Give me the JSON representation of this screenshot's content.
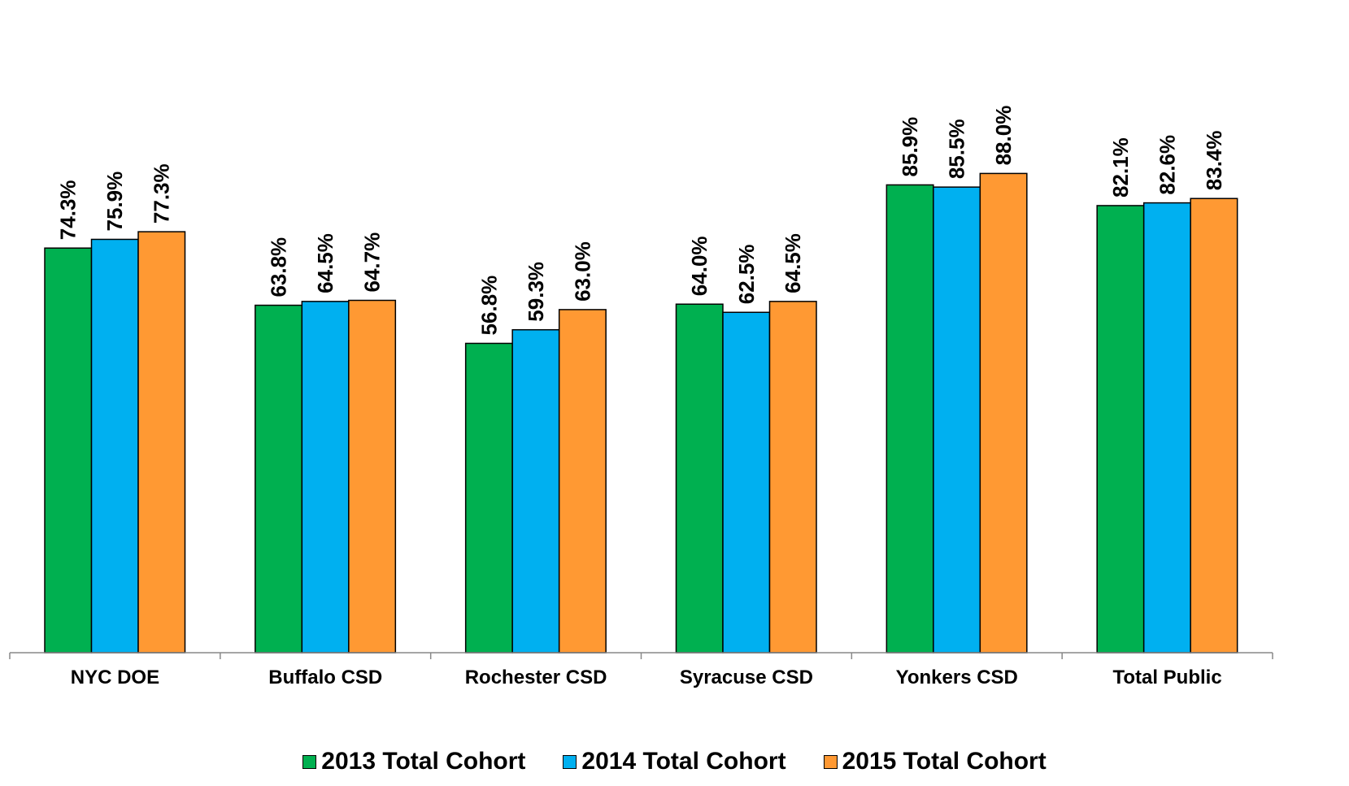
{
  "chart_data": {
    "type": "bar",
    "title": "",
    "xlabel": "",
    "ylabel": "",
    "ylim": [
      0,
      100
    ],
    "grid": false,
    "legend_position": "bottom",
    "categories": [
      "NYC DOE",
      "Buffalo CSD",
      "Rochester CSD",
      "Syracuse CSD",
      "Yonkers CSD",
      "Total Public"
    ],
    "series": [
      {
        "name": "2013 Total Cohort",
        "color": "#00B050",
        "values": [
          74.3,
          63.8,
          56.8,
          64.0,
          85.9,
          82.1
        ],
        "labels": [
          "74.3%",
          "63.8%",
          "56.8%",
          "64.0%",
          "85.9%",
          "82.1%"
        ]
      },
      {
        "name": "2014 Total Cohort",
        "color": "#00B0F0",
        "values": [
          75.9,
          64.5,
          59.3,
          62.5,
          85.5,
          82.6
        ],
        "labels": [
          "75.9%",
          "64.5%",
          "59.3%",
          "62.5%",
          "85.5%",
          "82.6%"
        ]
      },
      {
        "name": "2015 Total Cohort",
        "color": "#FF9933",
        "values": [
          77.3,
          64.7,
          63.0,
          64.5,
          88.0,
          83.4
        ],
        "labels": [
          "77.3%",
          "64.7%",
          "63.0%",
          "64.5%",
          "88.0%",
          "83.4%"
        ]
      }
    ]
  }
}
